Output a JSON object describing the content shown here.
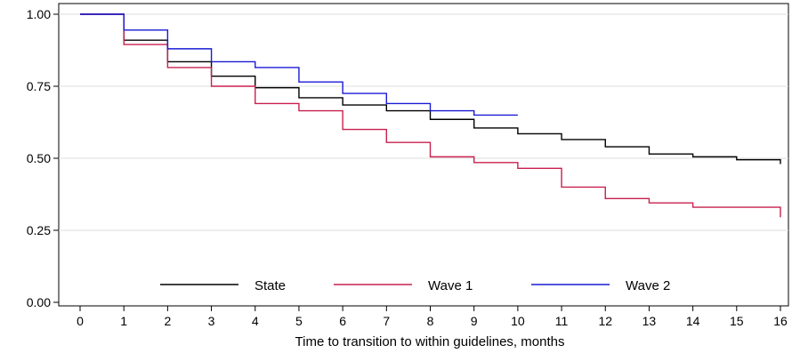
{
  "chart_data": {
    "type": "line",
    "step": true,
    "title": "",
    "xlabel": "Time to transition to within guidelines, months",
    "ylabel": "",
    "xlim": [
      0,
      16
    ],
    "ylim": [
      0,
      1
    ],
    "x_ticks": [
      0,
      1,
      2,
      3,
      4,
      5,
      6,
      7,
      8,
      9,
      10,
      11,
      12,
      13,
      14,
      15,
      16
    ],
    "y_ticks": [
      0,
      0.25,
      0.5,
      0.75,
      1
    ],
    "y_tick_labels": [
      "0.00",
      "0.25",
      "0.50",
      "0.75",
      "1.00"
    ],
    "grid": "horizontal",
    "legend_position": "bottom-inside",
    "series": [
      {
        "name": "State",
        "color": "#000000",
        "x": [
          0,
          1,
          2,
          3,
          4,
          5,
          6,
          7,
          8,
          9,
          10,
          11,
          12,
          13,
          14,
          15,
          16
        ],
        "y": [
          1.0,
          0.91,
          0.835,
          0.785,
          0.745,
          0.71,
          0.685,
          0.665,
          0.635,
          0.605,
          0.585,
          0.565,
          0.54,
          0.515,
          0.505,
          0.495,
          0.48
        ]
      },
      {
        "name": "Wave 1",
        "color": "#c8204e",
        "x": [
          0,
          1,
          2,
          3,
          4,
          5,
          6,
          7,
          8,
          9,
          10,
          11,
          12,
          13,
          14,
          15,
          16
        ],
        "y": [
          1.0,
          0.895,
          0.815,
          0.75,
          0.69,
          0.665,
          0.6,
          0.555,
          0.505,
          0.485,
          0.465,
          0.4,
          0.36,
          0.345,
          0.33,
          0.33,
          0.295
        ]
      },
      {
        "name": "Wave 2",
        "color": "#1a1ad6",
        "x": [
          0,
          1,
          2,
          3,
          4,
          5,
          6,
          7,
          8,
          9,
          10
        ],
        "y": [
          1.0,
          0.945,
          0.88,
          0.835,
          0.815,
          0.765,
          0.725,
          0.69,
          0.665,
          0.65,
          0.65
        ]
      }
    ]
  }
}
